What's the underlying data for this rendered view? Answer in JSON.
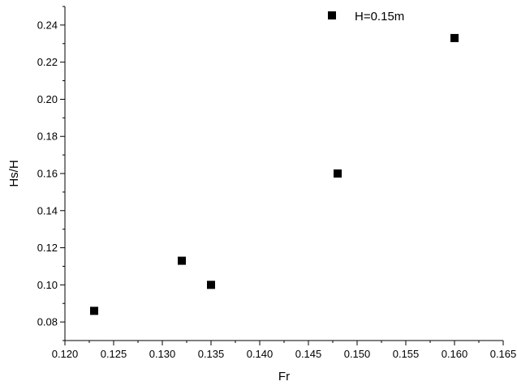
{
  "chart_data": {
    "type": "scatter",
    "title": "",
    "xlabel": "Fr",
    "ylabel": "Hs/H",
    "xlim": [
      0.12,
      0.165
    ],
    "ylim": [
      0.07,
      0.25
    ],
    "x_ticks": [
      "0.120",
      "0.125",
      "0.130",
      "0.135",
      "0.140",
      "0.145",
      "0.150",
      "0.155",
      "0.160",
      "0.165"
    ],
    "y_ticks": [
      "0.08",
      "0.10",
      "0.12",
      "0.14",
      "0.16",
      "0.18",
      "0.20",
      "0.22",
      "0.24"
    ],
    "series": [
      {
        "name": "H=0.15m",
        "marker": "square",
        "color": "#000000",
        "points": [
          {
            "x": 0.123,
            "y": 0.086
          },
          {
            "x": 0.132,
            "y": 0.113
          },
          {
            "x": 0.135,
            "y": 0.1
          },
          {
            "x": 0.148,
            "y": 0.16
          },
          {
            "x": 0.16,
            "y": 0.233
          }
        ]
      }
    ],
    "legend": "top-right",
    "grid": false
  }
}
